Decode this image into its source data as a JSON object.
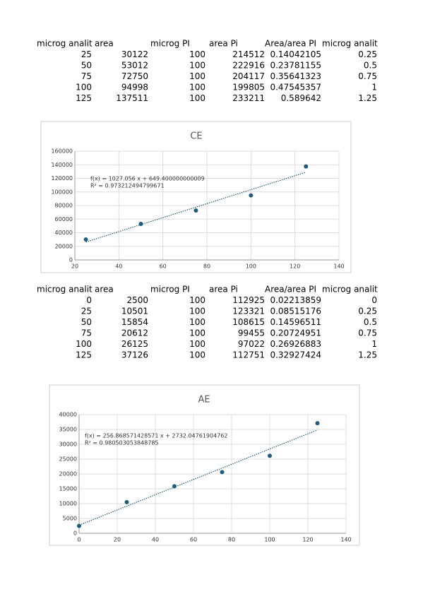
{
  "tables": [
    {
      "header": [
        "microg analit",
        "area",
        "microg PI",
        "area Pi",
        "Area/area PI",
        "microg analit"
      ],
      "rows": [
        [
          25,
          30122,
          100,
          214512,
          0.14042105,
          0.25
        ],
        [
          50,
          53012,
          100,
          222916,
          0.23781155,
          0.5
        ],
        [
          75,
          72750,
          100,
          204117,
          0.35641323,
          0.75
        ],
        [
          100,
          94998,
          100,
          199805,
          0.47545357,
          1
        ],
        [
          125,
          137511,
          100,
          233211,
          0.589642,
          1.25
        ]
      ]
    },
    {
      "header": [
        "microg analit",
        "area",
        "microg PI",
        "area Pi",
        "Area/area PI",
        "microg analit"
      ],
      "rows": [
        [
          0,
          2500,
          100,
          112925,
          0.02213859,
          0
        ],
        [
          25,
          10501,
          100,
          123321,
          0.08515176,
          0.25
        ],
        [
          50,
          15854,
          100,
          108615,
          0.14596511,
          0.5
        ],
        [
          75,
          20612,
          100,
          99455,
          0.20724951,
          0.75
        ],
        [
          100,
          26125,
          100,
          97022,
          0.26926883,
          1
        ],
        [
          125,
          37126,
          100,
          112751,
          0.32927424,
          1.25
        ]
      ]
    }
  ],
  "chart_data": [
    {
      "type": "scatter",
      "title": "CE",
      "color": "#1f5c7e",
      "grid": true,
      "trendline": true,
      "annotations": [
        "f(x) = 1027.056 x + 649.400000000009",
        "R² = 0.973212494799671"
      ],
      "x": [
        25,
        50,
        75,
        100,
        125
      ],
      "values": [
        30122,
        53012,
        72750,
        94998,
        137511
      ],
      "xlim": [
        20,
        140
      ],
      "xticks": [
        20,
        40,
        60,
        80,
        100,
        120,
        140
      ],
      "ylim": [
        0,
        160000
      ],
      "yticks": [
        0,
        20000,
        40000,
        60000,
        80000,
        100000,
        120000,
        140000,
        160000
      ]
    },
    {
      "type": "scatter",
      "title": "AE",
      "color": "#1f5c7e",
      "grid": true,
      "trendline": true,
      "annotations": [
        "f(x) = 256.868571428571 x + 2732.04761904762",
        "R² = 0.980503053848785"
      ],
      "x": [
        0,
        25,
        50,
        75,
        100,
        125
      ],
      "values": [
        2500,
        10501,
        15854,
        20612,
        26125,
        37126
      ],
      "xlim": [
        0,
        140
      ],
      "xticks": [
        0,
        20,
        40,
        60,
        80,
        100,
        120,
        140
      ],
      "ylim": [
        0,
        40000
      ],
      "yticks": [
        0,
        5000,
        10000,
        15000,
        20000,
        25000,
        30000,
        35000,
        40000
      ]
    }
  ]
}
